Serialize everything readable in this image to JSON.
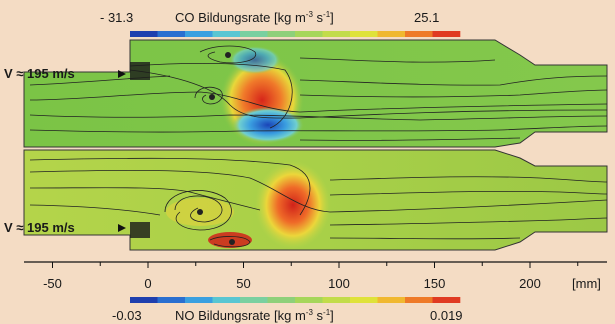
{
  "top_legend": {
    "min": "- 31.3",
    "title": "CO Bildungsrate [kg m",
    "exp1": "-3",
    "mid": " s",
    "exp2": "-1",
    "close": "]",
    "max": "25.1"
  },
  "bottom_legend": {
    "min": "-0.03",
    "title": "NO Bildungsrate [kg m",
    "exp1": "-3",
    "mid": " s",
    "exp2": "-1",
    "close": "]",
    "max": "0.019"
  },
  "inlet_top": "V ≈ 195 m/s",
  "inlet_bottom": "V ≈ 195 m/s",
  "axis": {
    "ticks": [
      "-50",
      "0",
      "50",
      "100",
      "150",
      "200"
    ],
    "unit": "[mm]"
  },
  "colorbar_colors": [
    "#1f3fae",
    "#2a6fd0",
    "#3aa0e0",
    "#59c6d2",
    "#7ad0a0",
    "#8ed07a",
    "#a6d65a",
    "#c2dc4a",
    "#dfe23a",
    "#f0b830",
    "#ee7a28",
    "#e03a22"
  ],
  "colors": {
    "background": "#f4dcc4",
    "field_green": "#7fc64a",
    "field_yellow": "#b8d648",
    "streamline": "#222222"
  }
}
